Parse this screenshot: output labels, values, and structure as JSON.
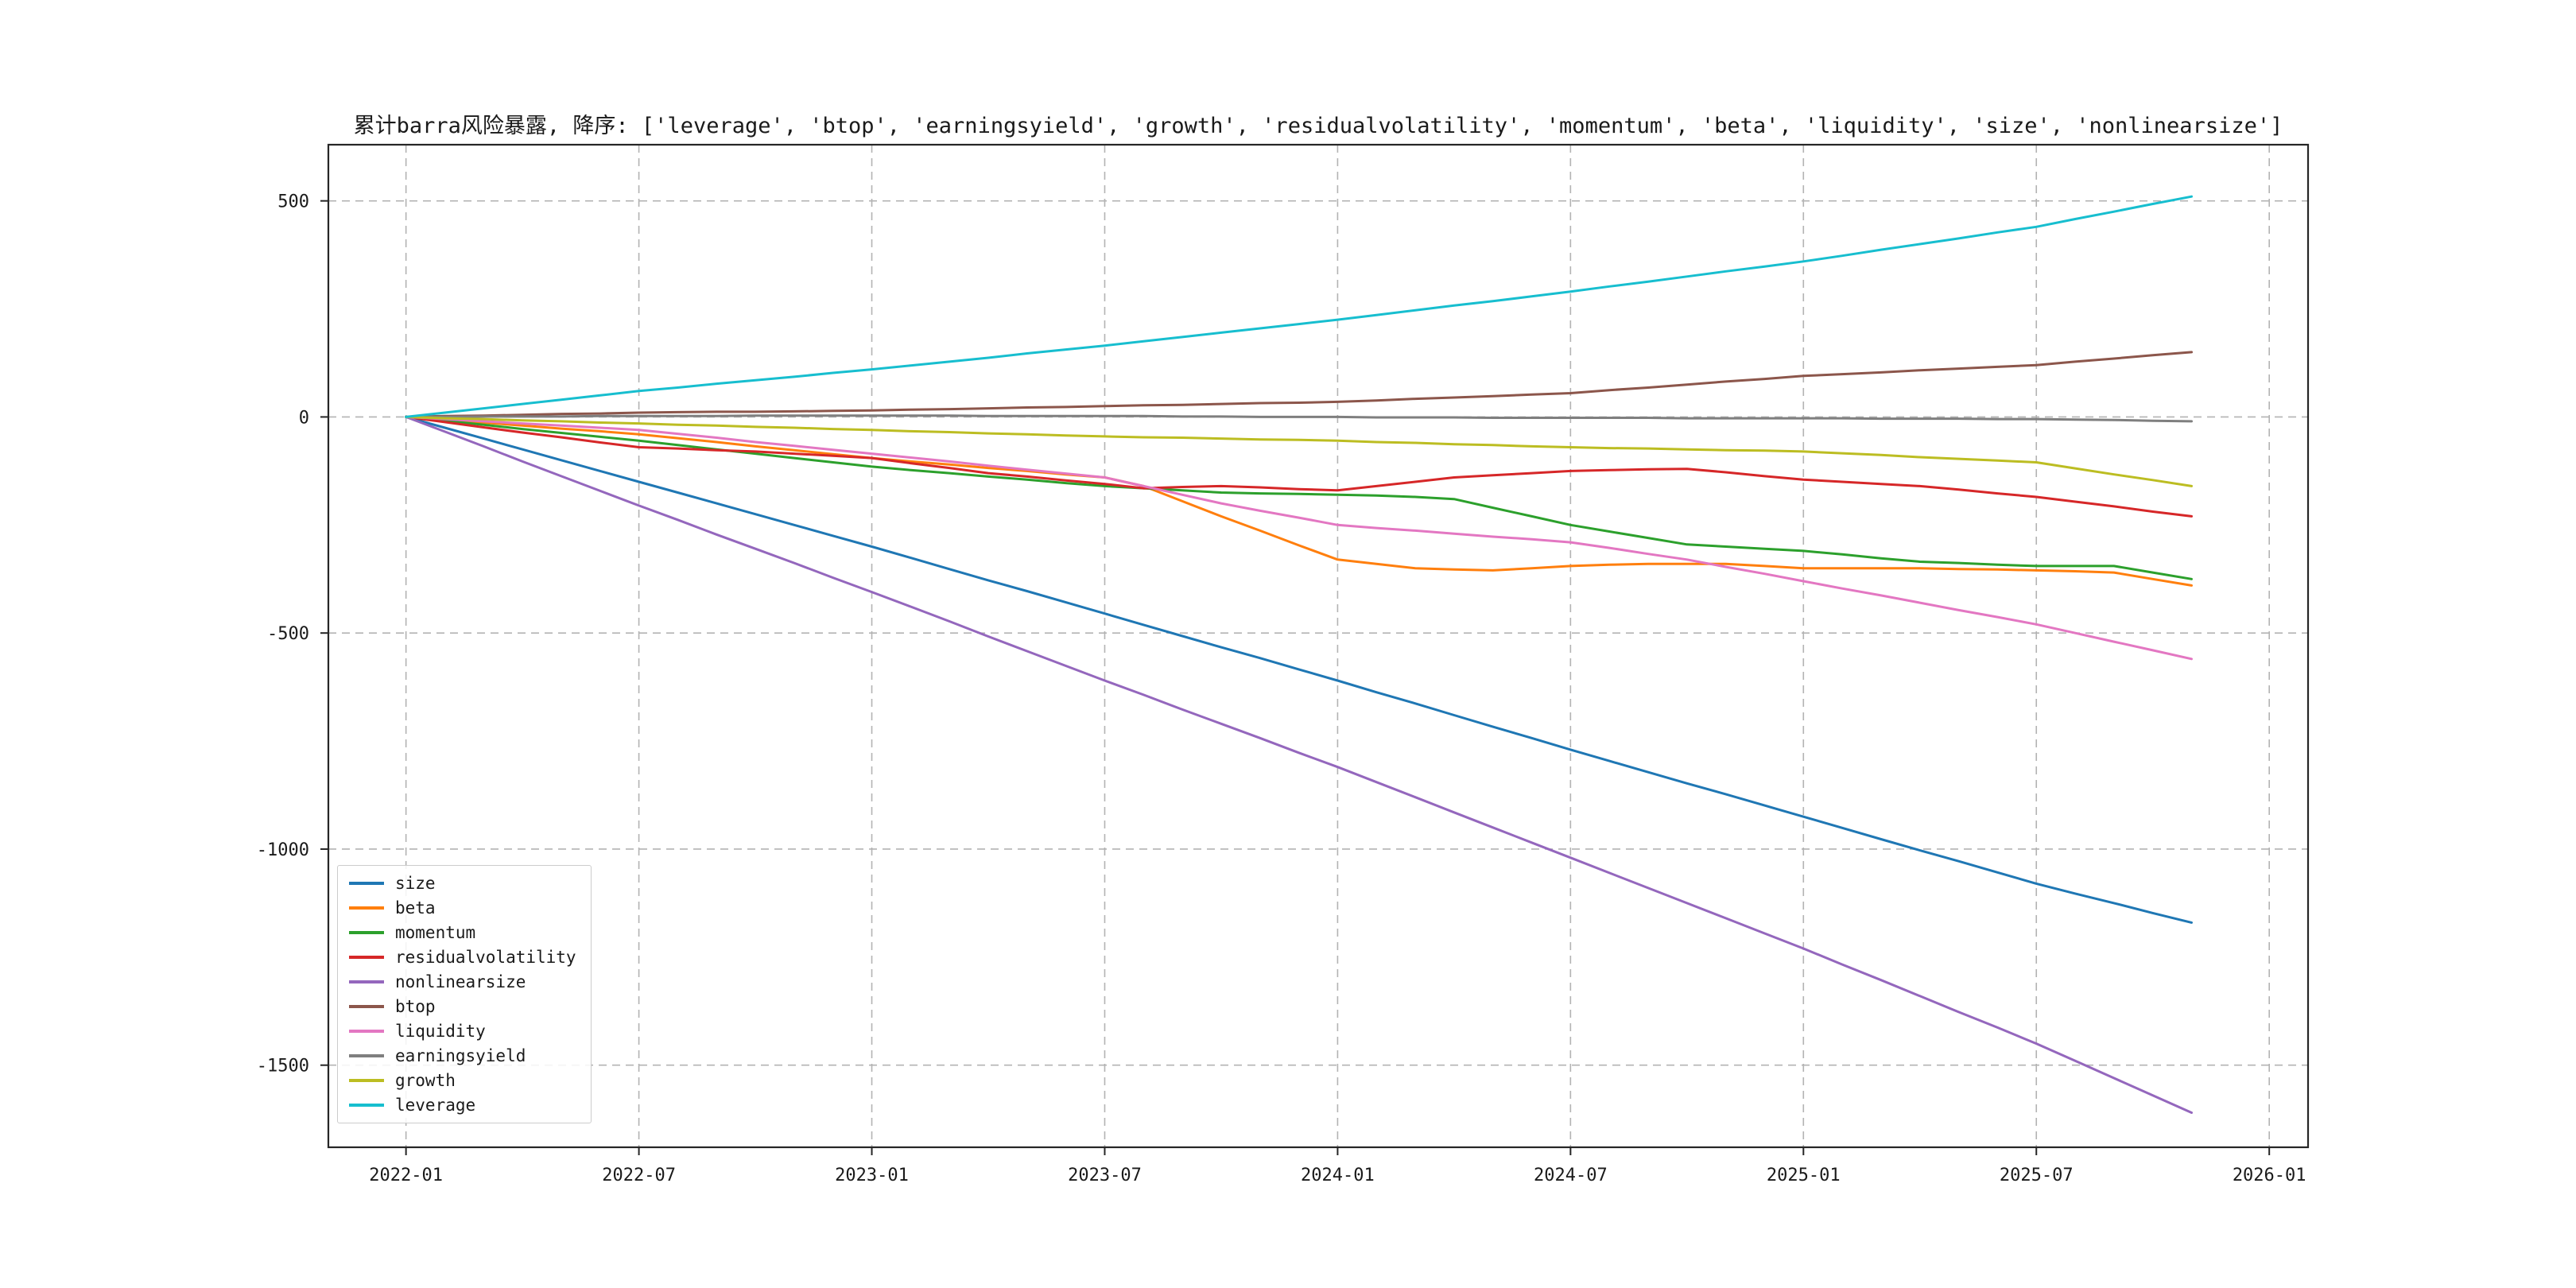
{
  "chart_data": {
    "type": "line",
    "title": "累计barra风险暴露, 降序: ['leverage', 'btop', 'earningsyield', 'growth', 'residualvolatility', 'momentum', 'beta', 'liquidity', 'size', 'nonlinearsize']",
    "x_unit": "months since 2022-01",
    "x": [
      0,
      1,
      2,
      3,
      4,
      5,
      6,
      7,
      8,
      9,
      10,
      11,
      12,
      13,
      14,
      15,
      16,
      17,
      18,
      19,
      20,
      21,
      22,
      23,
      24,
      25,
      26,
      27,
      28,
      29,
      30,
      31,
      32,
      33,
      34,
      35,
      36,
      37,
      38,
      39,
      40,
      41,
      42,
      43,
      44,
      45,
      46
    ],
    "xlim": [
      -2,
      49
    ],
    "ylim": [
      -1690,
      630
    ],
    "grid": true,
    "legend_position": "lower left",
    "xticks": {
      "positions": [
        0,
        6,
        12,
        18,
        24,
        30,
        36,
        42,
        48
      ],
      "labels": [
        "2022-01",
        "2022-07",
        "2023-01",
        "2023-07",
        "2024-01",
        "2024-07",
        "2025-01",
        "2025-07",
        "2026-01"
      ]
    },
    "yticks": [
      500,
      0,
      -500,
      -1000,
      -1500
    ],
    "series": [
      {
        "name": "size",
        "color": "#1f77b4",
        "values": [
          0,
          -25,
          -50,
          -75,
          -100,
          -125,
          -150,
          -175,
          -200,
          -225,
          -250,
          -275,
          -300,
          -326,
          -352,
          -378,
          -403,
          -429,
          -455,
          -481,
          -507,
          -533,
          -558,
          -584,
          -610,
          -637,
          -663,
          -690,
          -717,
          -743,
          -770,
          -796,
          -822,
          -848,
          -873,
          -899,
          -925,
          -951,
          -977,
          -1003,
          -1028,
          -1054,
          -1080,
          -1103,
          -1125,
          -1148,
          -1170
        ]
      },
      {
        "name": "beta",
        "color": "#ff7f0e",
        "values": [
          0,
          -7,
          -13,
          -20,
          -27,
          -33,
          -40,
          -49,
          -58,
          -68,
          -77,
          -86,
          -95,
          -103,
          -110,
          -118,
          -125,
          -133,
          -140,
          -160,
          -195,
          -230,
          -263,
          -297,
          -330,
          -340,
          -350,
          -353,
          -355,
          -350,
          -345,
          -342,
          -340,
          -340,
          -340,
          -345,
          -350,
          -350,
          -350,
          -350,
          -352,
          -353,
          -355,
          -357,
          -360,
          -375,
          -390
        ]
      },
      {
        "name": "momentum",
        "color": "#2ca02c",
        "values": [
          0,
          -9,
          -18,
          -28,
          -37,
          -46,
          -55,
          -65,
          -75,
          -85,
          -95,
          -105,
          -115,
          -123,
          -130,
          -138,
          -145,
          -153,
          -160,
          -165,
          -170,
          -175,
          -177,
          -178,
          -180,
          -182,
          -185,
          -190,
          -210,
          -230,
          -250,
          -265,
          -280,
          -295,
          -300,
          -305,
          -310,
          -318,
          -327,
          -335,
          -338,
          -342,
          -345,
          -345,
          -345,
          -360,
          -375
        ]
      },
      {
        "name": "residualvolatility",
        "color": "#d62728",
        "values": [
          0,
          -12,
          -24,
          -36,
          -47,
          -59,
          -70,
          -73,
          -77,
          -80,
          -85,
          -90,
          -95,
          -107,
          -118,
          -130,
          -138,
          -147,
          -155,
          -165,
          -162,
          -160,
          -163,
          -167,
          -170,
          -160,
          -150,
          -140,
          -135,
          -130,
          -125,
          -123,
          -121,
          -120,
          -128,
          -137,
          -145,
          -150,
          -155,
          -160,
          -168,
          -177,
          -185,
          -196,
          -207,
          -219,
          -230
        ]
      },
      {
        "name": "nonlinearsize",
        "color": "#9467bd",
        "values": [
          0,
          -34,
          -68,
          -103,
          -137,
          -171,
          -205,
          -238,
          -272,
          -305,
          -338,
          -372,
          -405,
          -439,
          -473,
          -508,
          -542,
          -576,
          -610,
          -643,
          -677,
          -710,
          -743,
          -777,
          -810,
          -845,
          -880,
          -915,
          -950,
          -985,
          -1020,
          -1055,
          -1090,
          -1125,
          -1160,
          -1195,
          -1230,
          -1267,
          -1303,
          -1340,
          -1377,
          -1413,
          -1450,
          -1490,
          -1530,
          -1570,
          -1610
        ]
      },
      {
        "name": "btop",
        "color": "#8c564b",
        "values": [
          0,
          2,
          3,
          5,
          7,
          8,
          10,
          11,
          12,
          12,
          13,
          14,
          15,
          17,
          18,
          20,
          22,
          23,
          25,
          27,
          28,
          30,
          32,
          33,
          35,
          38,
          42,
          45,
          48,
          52,
          55,
          62,
          68,
          75,
          82,
          88,
          95,
          99,
          103,
          108,
          112,
          116,
          120,
          128,
          135,
          143,
          150
        ]
      },
      {
        "name": "liquidity",
        "color": "#e377c2",
        "values": [
          0,
          -5,
          -10,
          -15,
          -20,
          -25,
          -30,
          -39,
          -48,
          -58,
          -67,
          -76,
          -85,
          -94,
          -103,
          -113,
          -122,
          -131,
          -140,
          -160,
          -180,
          -200,
          -217,
          -233,
          -250,
          -257,
          -263,
          -270,
          -277,
          -283,
          -290,
          -303,
          -317,
          -330,
          -347,
          -363,
          -380,
          -397,
          -413,
          -430,
          -447,
          -463,
          -480,
          -500,
          -520,
          -540,
          -560
        ]
      },
      {
        "name": "earningsyield",
        "color": "#7f7f7f",
        "values": [
          0,
          0,
          1,
          1,
          1,
          2,
          2,
          2,
          2,
          3,
          3,
          3,
          3,
          3,
          3,
          2,
          2,
          2,
          2,
          2,
          1,
          1,
          0,
          0,
          0,
          -1,
          -1,
          -1,
          -2,
          -2,
          -2,
          -2,
          -2,
          -3,
          -3,
          -3,
          -3,
          -3,
          -4,
          -4,
          -4,
          -5,
          -5,
          -6,
          -7,
          -9,
          -10
        ]
      },
      {
        "name": "growth",
        "color": "#bcbd22",
        "values": [
          0,
          -3,
          -5,
          -8,
          -10,
          -13,
          -15,
          -18,
          -20,
          -23,
          -25,
          -28,
          -30,
          -33,
          -35,
          -38,
          -40,
          -43,
          -45,
          -47,
          -48,
          -50,
          -52,
          -53,
          -55,
          -58,
          -60,
          -63,
          -65,
          -68,
          -70,
          -72,
          -73,
          -75,
          -77,
          -78,
          -80,
          -84,
          -88,
          -93,
          -97,
          -101,
          -105,
          -119,
          -133,
          -146,
          -160
        ]
      },
      {
        "name": "leverage",
        "color": "#17becf",
        "values": [
          0,
          10,
          20,
          30,
          40,
          50,
          60,
          68,
          77,
          85,
          93,
          102,
          110,
          119,
          128,
          137,
          147,
          156,
          165,
          175,
          185,
          195,
          205,
          215,
          225,
          236,
          247,
          258,
          268,
          279,
          290,
          302,
          313,
          325,
          337,
          348,
          360,
          373,
          387,
          400,
          413,
          427,
          440,
          458,
          475,
          493,
          510
        ]
      }
    ]
  }
}
